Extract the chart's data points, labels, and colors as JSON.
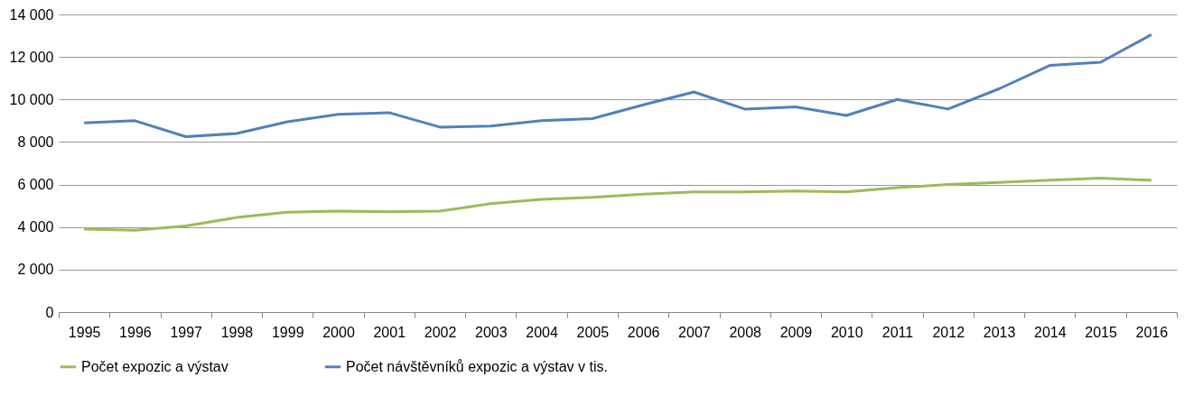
{
  "chart_data": {
    "type": "line",
    "categories": [
      "1995",
      "1996",
      "1997",
      "1998",
      "1999",
      "2000",
      "2001",
      "2002",
      "2003",
      "2004",
      "2005",
      "2006",
      "2007",
      "2008",
      "2009",
      "2010",
      "2011",
      "2012",
      "2013",
      "2014",
      "2015",
      "2016"
    ],
    "series": [
      {
        "name": "Počet expozic a výstav",
        "color": "#9bbb59",
        "values": [
          3900,
          3850,
          4050,
          4450,
          4700,
          4750,
          4720,
          4750,
          5100,
          5300,
          5400,
          5550,
          5650,
          5650,
          5700,
          5650,
          5850,
          6000,
          6100,
          6200,
          6300,
          6200
        ]
      },
      {
        "name": "Počet návštěvníků expozic a výstav v tis.",
        "color": "#4f81bd",
        "values": [
          8900,
          9000,
          8250,
          8400,
          8950,
          9300,
          9380,
          8700,
          8750,
          9000,
          9100,
          9750,
          10350,
          9550,
          9650,
          9250,
          10000,
          9550,
          10500,
          11600,
          11750,
          13050
        ]
      }
    ],
    "ylim": [
      0,
      14000
    ],
    "yticks": [
      0,
      {
        "value": 2000,
        "label": "2 000"
      },
      {
        "value": 4000,
        "label": "4 000"
      },
      {
        "value": 6000,
        "label": "6 000"
      },
      {
        "value": 8000,
        "label": "8 000"
      },
      {
        "value": 10000,
        "label": "10 000"
      },
      {
        "value": 12000,
        "label": "12 000"
      },
      {
        "value": 14000,
        "label": "14 000"
      }
    ],
    "grid": "y",
    "legend": "bottom",
    "marker": "none",
    "line_style": "solid"
  }
}
